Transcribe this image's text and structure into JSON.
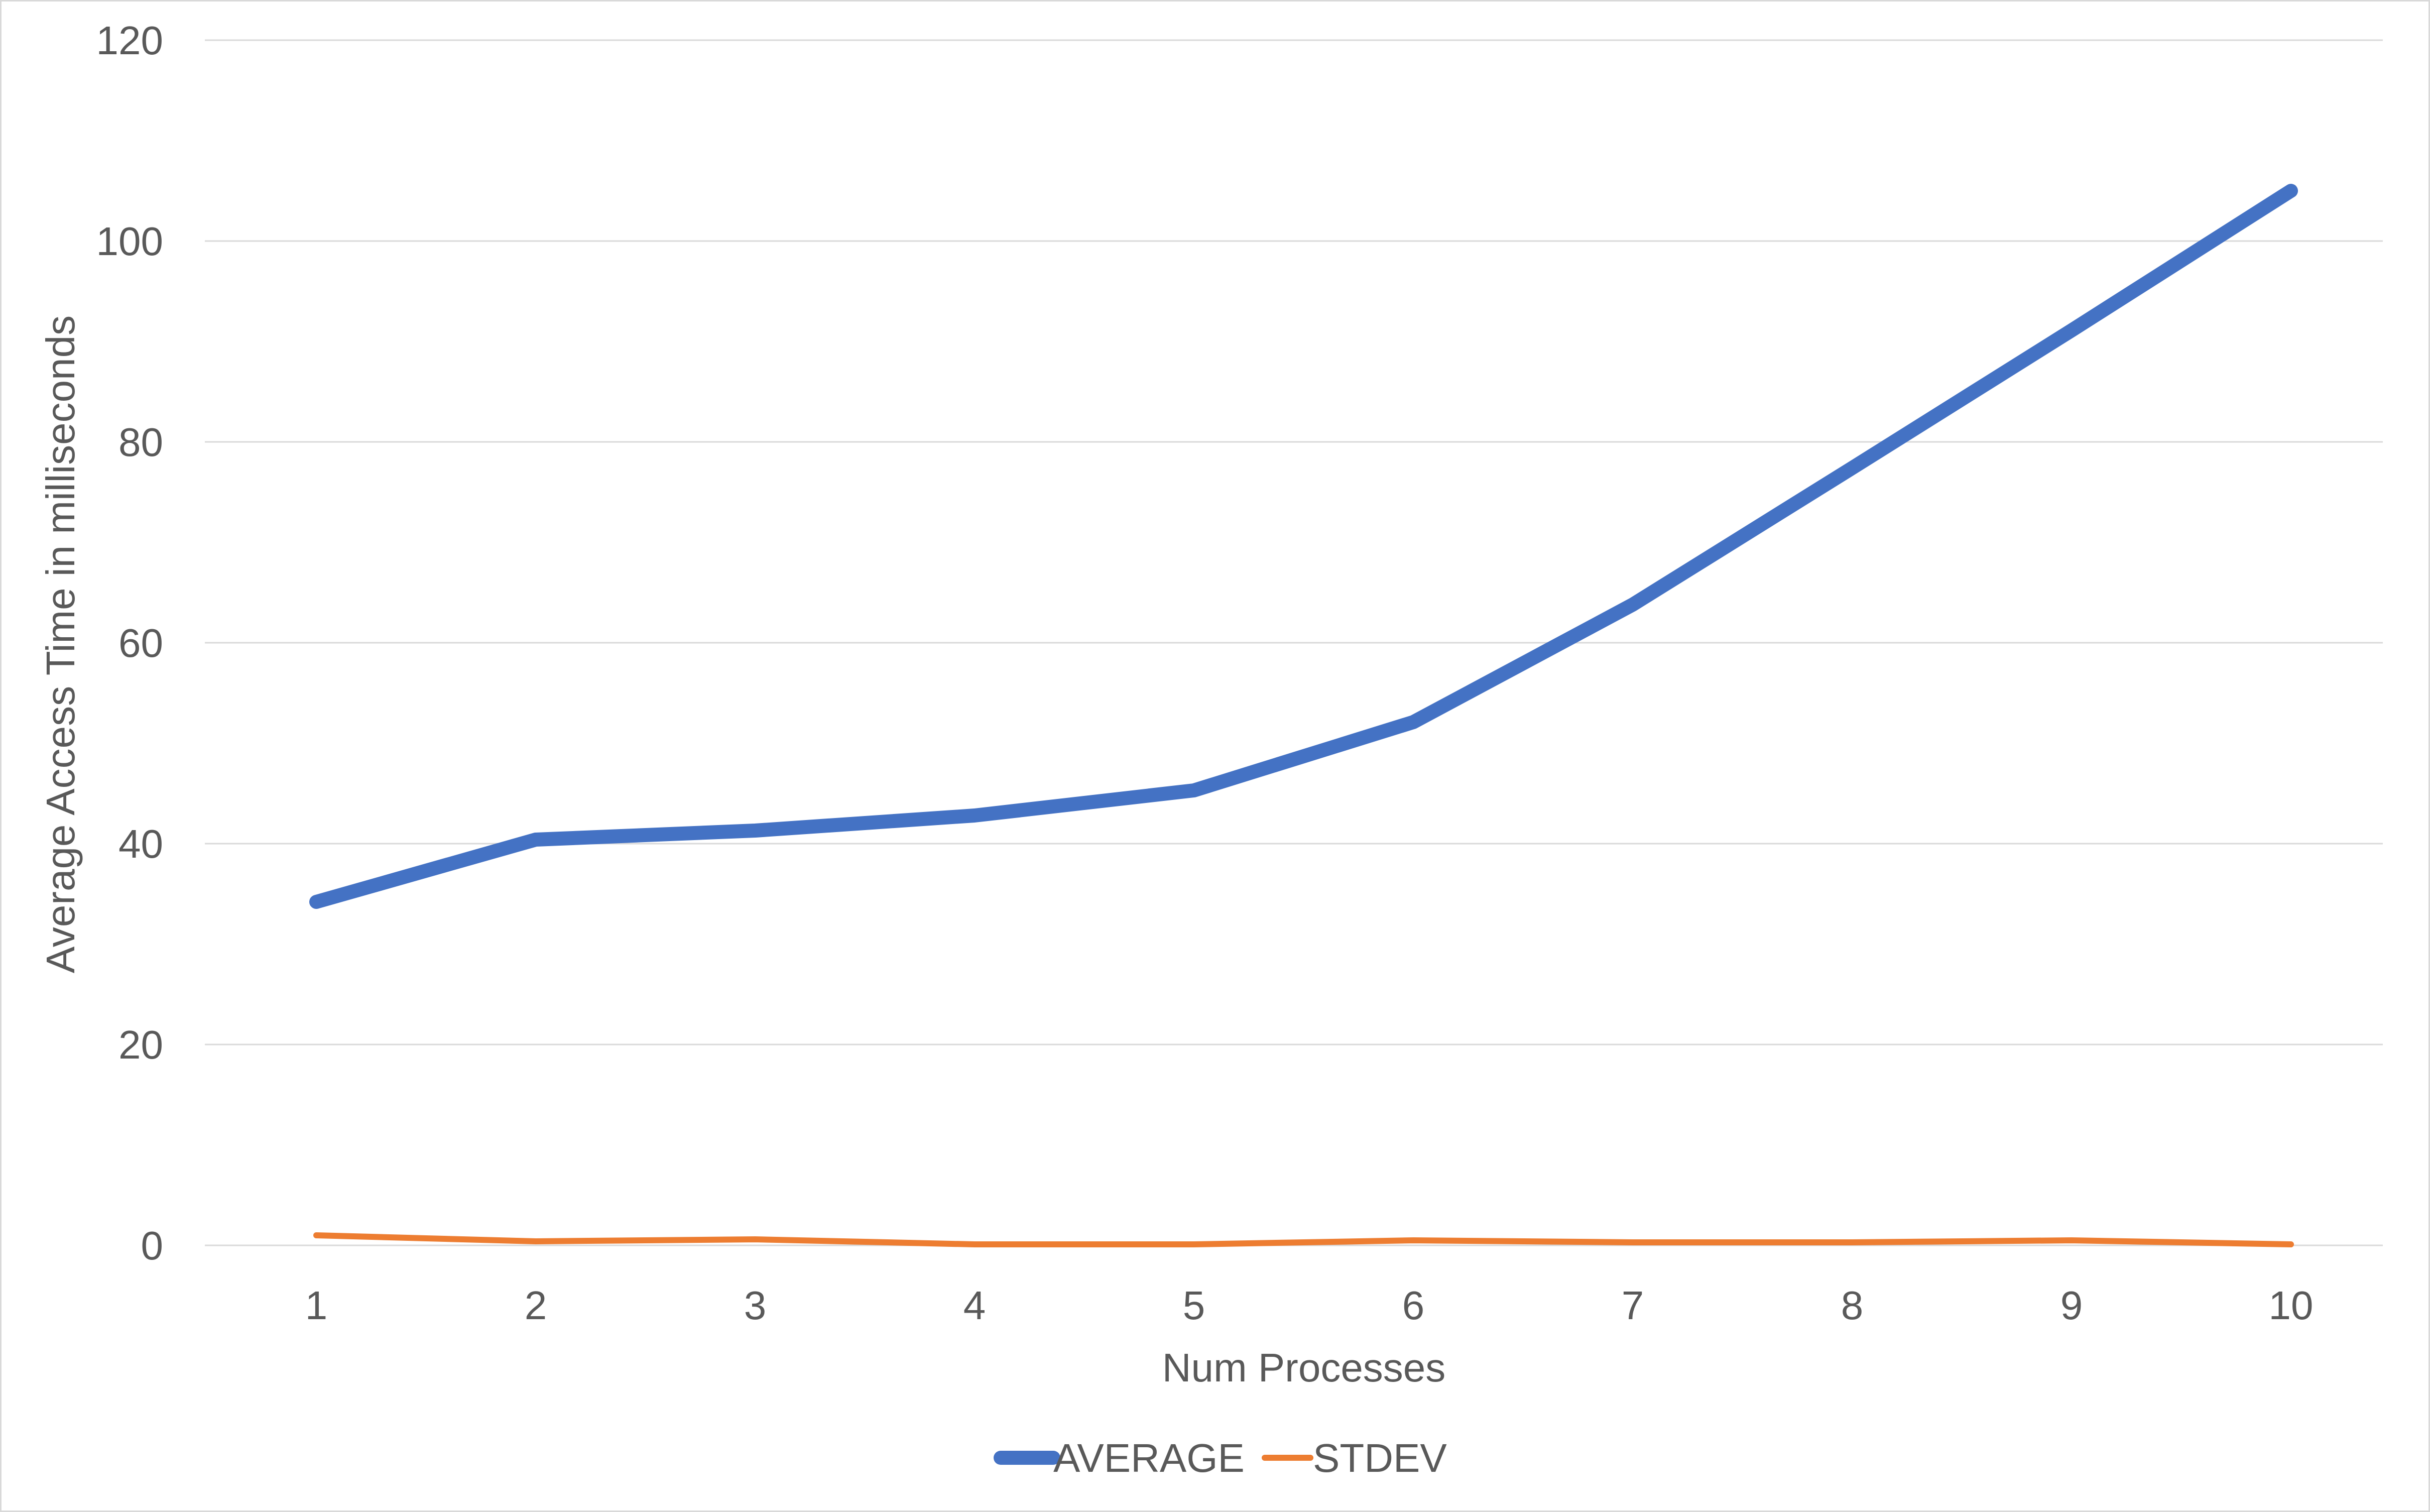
{
  "chart_data": {
    "type": "line",
    "title": "",
    "xlabel": "Num Processes",
    "ylabel": "Average Access Time in milliseconds",
    "categories": [
      "1",
      "2",
      "3",
      "4",
      "5",
      "6",
      "7",
      "8",
      "9",
      "10"
    ],
    "ylim": [
      0,
      120
    ],
    "yticks": [
      0,
      20,
      40,
      60,
      80,
      100,
      120
    ],
    "grid": true,
    "legend_position": "bottom",
    "series": [
      {
        "name": "AVERAGE",
        "color": "#4472C4",
        "values": [
          34.2,
          40.4,
          41.3,
          42.8,
          45.3,
          52.1,
          63.8,
          77.4,
          91.1,
          105.0
        ]
      },
      {
        "name": "STDEV",
        "color": "#ED7D31",
        "values": [
          1.0,
          0.4,
          0.6,
          0.1,
          0.1,
          0.5,
          0.3,
          0.3,
          0.5,
          0.1
        ]
      }
    ]
  }
}
